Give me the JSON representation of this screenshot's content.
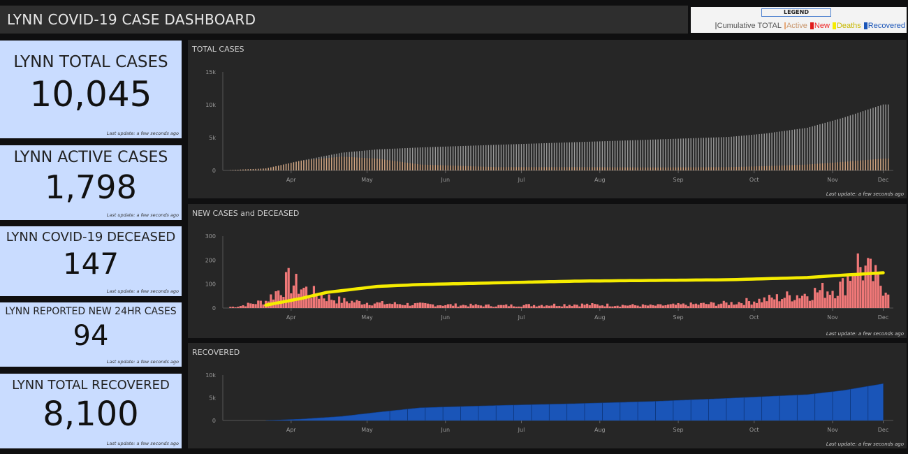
{
  "header": {
    "title": "LYNN COVID-19 CASE DASHBOARD"
  },
  "legend": {
    "title": "LEGEND",
    "items": [
      {
        "label": "Cumulative TOTAL",
        "color": "#9a9a9a"
      },
      {
        "label": "Active",
        "color": "#e8a978"
      },
      {
        "label": "New",
        "color": "#e01b1b"
      },
      {
        "label": "Deaths",
        "color": "#f5ec00"
      },
      {
        "label": "Recovered",
        "color": "#1a55b8"
      }
    ]
  },
  "cards": [
    {
      "label": "LYNN TOTAL CASES",
      "value": "10,045",
      "update": "Last update: a few seconds ago"
    },
    {
      "label": "LYNN ACTIVE CASES",
      "value": "1,798",
      "update": "Last update: a few seconds ago"
    },
    {
      "label": "LYNN COVID-19 DECEASED",
      "value": "147",
      "update": "Last update: a few seconds ago"
    },
    {
      "label": "LYNN REPORTED NEW 24HR CASES",
      "value": "94",
      "update": "Last update: a few seconds ago"
    },
    {
      "label": "LYNN TOTAL RECOVERED",
      "value": "8,100",
      "update": "Last update: a few seconds ago"
    }
  ],
  "panels": {
    "total": {
      "title": "TOTAL CASES",
      "update": "Last update: a few seconds ago"
    },
    "new": {
      "title": "NEW CASES and DECEASED",
      "update": "Last update: a few seconds ago"
    },
    "recovered": {
      "title": "RECOVERED",
      "update": "Last update: a few seconds ago"
    }
  },
  "chart_data": [
    {
      "type": "bar",
      "title": "TOTAL CASES",
      "x_ticks": [
        "Apr",
        "May",
        "Jun",
        "Jul",
        "Aug",
        "Sep",
        "Oct",
        "Nov",
        "Dec"
      ],
      "y_ticks": [
        "0",
        "5k",
        "10k",
        "15k"
      ],
      "ylim": [
        0,
        15000
      ],
      "grid": false,
      "series": [
        {
          "name": "Cumulative TOTAL",
          "color": "#9a9a9a",
          "x": [
            "Mar 15",
            "Apr 1",
            "Apr 15",
            "May 1",
            "May 15",
            "Jun 1",
            "Jul 1",
            "Aug 1",
            "Sep 1",
            "Oct 1",
            "Oct 15",
            "Nov 1",
            "Nov 15",
            "Dec 1"
          ],
          "y": [
            0,
            300,
            1500,
            2700,
            3200,
            3500,
            3900,
            4300,
            4700,
            5100,
            5600,
            6500,
            8000,
            10045
          ]
        },
        {
          "name": "Active",
          "color": "#e8a978",
          "x": [
            "Mar 15",
            "Apr 1",
            "Apr 15",
            "May 1",
            "May 15",
            "Jun 1",
            "Jul 1",
            "Aug 1",
            "Sep 1",
            "Oct 1",
            "Oct 15",
            "Nov 1",
            "Nov 15",
            "Dec 1"
          ],
          "y": [
            0,
            300,
            1500,
            2100,
            1800,
            900,
            500,
            500,
            450,
            500,
            650,
            900,
            1300,
            1798
          ]
        }
      ]
    },
    {
      "type": "bar",
      "title": "NEW CASES and DECEASED",
      "x_ticks": [
        "Apr",
        "May",
        "Jun",
        "Jul",
        "Aug",
        "Sep",
        "Oct",
        "Nov",
        "Dec"
      ],
      "y_ticks": [
        "0",
        "100",
        "200",
        "300"
      ],
      "ylim": [
        0,
        300
      ],
      "grid": false,
      "series": [
        {
          "name": "New",
          "color": "#f07878",
          "x": [
            "Mar 20",
            "Apr 1",
            "Apr 10",
            "Apr 20",
            "May 1",
            "May 15",
            "Jun 1",
            "Jul 1",
            "Aug 1",
            "Sep 1",
            "Oct 1",
            "Oct 15",
            "Nov 1",
            "Nov 15",
            "Nov 20",
            "Dec 1"
          ],
          "y": [
            5,
            30,
            110,
            60,
            30,
            20,
            15,
            10,
            15,
            10,
            20,
            35,
            60,
            90,
            190,
            94
          ]
        },
        {
          "name": "Deaths",
          "color": "#f5ec00",
          "x": [
            "Apr 1",
            "Apr 15",
            "Apr 25",
            "May 15",
            "Jun 1",
            "Jul 1",
            "Aug 1",
            "Sep 1",
            "Oct 1",
            "Nov 1",
            "Nov 15",
            "Dec 1"
          ],
          "y": [
            12,
            40,
            65,
            90,
            98,
            105,
            112,
            115,
            118,
            127,
            137,
            147
          ]
        }
      ]
    },
    {
      "type": "area",
      "title": "RECOVERED",
      "x_ticks": [
        "Apr",
        "May",
        "Jun",
        "Jul",
        "Aug",
        "Sep",
        "Oct",
        "Nov",
        "Dec"
      ],
      "y_ticks": [
        "0",
        "5k",
        "10k"
      ],
      "ylim": [
        0,
        10000
      ],
      "grid": false,
      "series": [
        {
          "name": "Recovered",
          "color": "#1a55b8",
          "x": [
            "Apr 1",
            "Apr 15",
            "May 1",
            "May 15",
            "Jun 1",
            "Jul 1",
            "Aug 1",
            "Sep 1",
            "Oct 1",
            "Nov 1",
            "Nov 15",
            "Dec 1"
          ],
          "y": [
            0,
            300,
            900,
            1800,
            2800,
            3300,
            3700,
            4200,
            4900,
            5700,
            6600,
            8100
          ]
        }
      ]
    }
  ]
}
